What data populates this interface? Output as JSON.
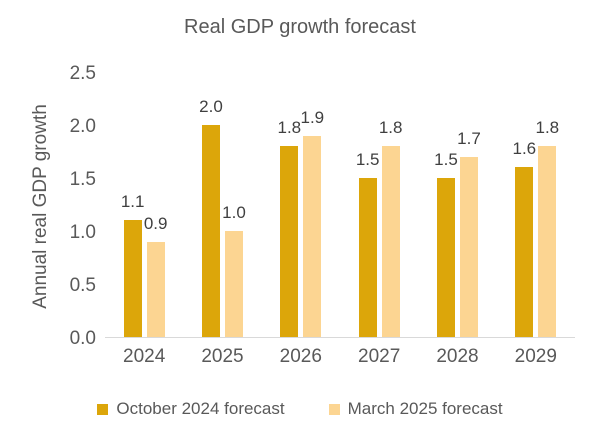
{
  "chart_data": {
    "type": "bar",
    "title": "Real GDP growth forecast",
    "ylabel": "Annual real GDP growth",
    "xlabel": "",
    "categories": [
      "2024",
      "2025",
      "2026",
      "2027",
      "2028",
      "2029"
    ],
    "series": [
      {
        "name": "October 2024 forecast",
        "color": "#DCA60A",
        "values": [
          1.1,
          2.0,
          1.8,
          1.5,
          1.5,
          1.6
        ]
      },
      {
        "name": "March 2025 forecast",
        "color": "#FCD592",
        "values": [
          0.9,
          1.0,
          1.9,
          1.8,
          1.7,
          1.8
        ]
      }
    ],
    "yticks": [
      0.0,
      0.5,
      1.0,
      1.5,
      2.0,
      2.5
    ],
    "ylim": [
      0,
      2.5
    ],
    "grid": false,
    "data_labels": true,
    "data_label_decimals": 1,
    "legend_position": "bottom"
  },
  "colors": {
    "title_text": "#595959",
    "axis_text": "#595959",
    "data_label_text": "#3F3F3F",
    "axis_line": "#D9D9D9",
    "background": "#FFFFFF"
  }
}
